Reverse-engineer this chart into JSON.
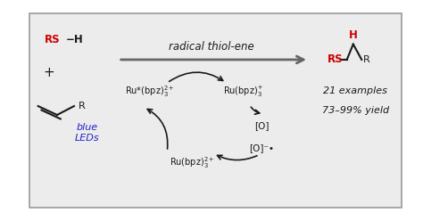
{
  "bg_outer": "#ffffff",
  "bg_box": "#ececec",
  "box_border": "#999999",
  "red": "#cc0000",
  "blue": "#2222cc",
  "black": "#1a1a1a",
  "gray_arrow": "#666666",
  "title_text": "radical thiol-ene",
  "examples_text": "21 examples",
  "yield_text": "73–99% yield",
  "blue_leds": "blue\nLEDs"
}
